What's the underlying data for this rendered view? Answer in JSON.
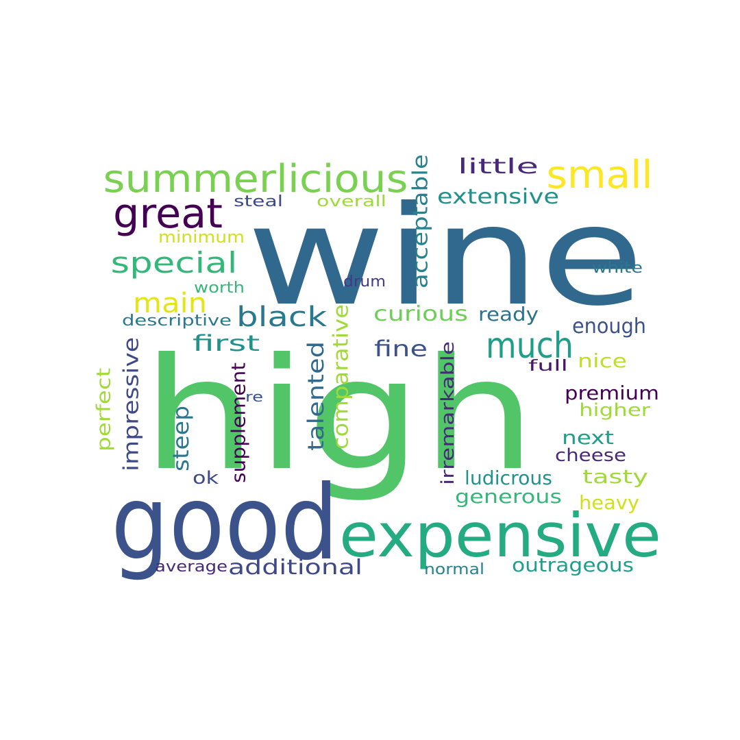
{
  "word_cloud": {
    "words": [
      {
        "text": "wine",
        "color": "#31688e"
      },
      {
        "text": "high",
        "color": "#52c569"
      },
      {
        "text": "good",
        "color": "#3b528b"
      },
      {
        "text": "expensive",
        "color": "#25ab82"
      },
      {
        "text": "summerlicious",
        "color": "#7ad151"
      },
      {
        "text": "great",
        "color": "#440154"
      },
      {
        "text": "small",
        "color": "#fde725"
      },
      {
        "text": "special",
        "color": "#35b779"
      },
      {
        "text": "much",
        "color": "#1f9e89"
      },
      {
        "text": "main",
        "color": "#e5e419"
      },
      {
        "text": "black",
        "color": "#2a788e"
      },
      {
        "text": "little",
        "color": "#482878"
      },
      {
        "text": "extensive",
        "color": "#21918c"
      },
      {
        "text": "acceptable",
        "color": "#26828e"
      },
      {
        "text": "steal",
        "color": "#3e4989"
      },
      {
        "text": "overall",
        "color": "#a0da39"
      },
      {
        "text": "minimum",
        "color": "#d0e11c"
      },
      {
        "text": "worth",
        "color": "#35b779"
      },
      {
        "text": "drum",
        "color": "#443983"
      },
      {
        "text": "white",
        "color": "#2a788e"
      },
      {
        "text": "descriptive",
        "color": "#2a788e"
      },
      {
        "text": "curious",
        "color": "#6ece58"
      },
      {
        "text": "ready",
        "color": "#2c728e"
      },
      {
        "text": "enough",
        "color": "#3b528b"
      },
      {
        "text": "first",
        "color": "#21918c"
      },
      {
        "text": "fine",
        "color": "#3b528b"
      },
      {
        "text": "nice",
        "color": "#bddf26"
      },
      {
        "text": "full",
        "color": "#48186a"
      },
      {
        "text": "premium",
        "color": "#440154"
      },
      {
        "text": "higher",
        "color": "#a0da39"
      },
      {
        "text": "next",
        "color": "#1f9e89"
      },
      {
        "text": "cheese",
        "color": "#482878"
      },
      {
        "text": "tasty",
        "color": "#a0da39"
      },
      {
        "text": "ludicrous",
        "color": "#21918c"
      },
      {
        "text": "generous",
        "color": "#35b779"
      },
      {
        "text": "heavy",
        "color": "#d0e11c"
      },
      {
        "text": "ok",
        "color": "#3e4989"
      },
      {
        "text": "re",
        "color": "#3b528b"
      },
      {
        "text": "average",
        "color": "#482878"
      },
      {
        "text": "additional",
        "color": "#3e4989"
      },
      {
        "text": "normal",
        "color": "#26828e"
      },
      {
        "text": "outrageous",
        "color": "#1f9e89"
      },
      {
        "text": "perfect",
        "color": "#a0da39"
      },
      {
        "text": "impressive",
        "color": "#3e4989"
      },
      {
        "text": "steep",
        "color": "#2a788e"
      },
      {
        "text": "supplement",
        "color": "#440154"
      },
      {
        "text": "talented",
        "color": "#31688e"
      },
      {
        "text": "comparative",
        "color": "#a0da39"
      },
      {
        "text": "irremarkable",
        "color": "#482878"
      }
    ]
  }
}
